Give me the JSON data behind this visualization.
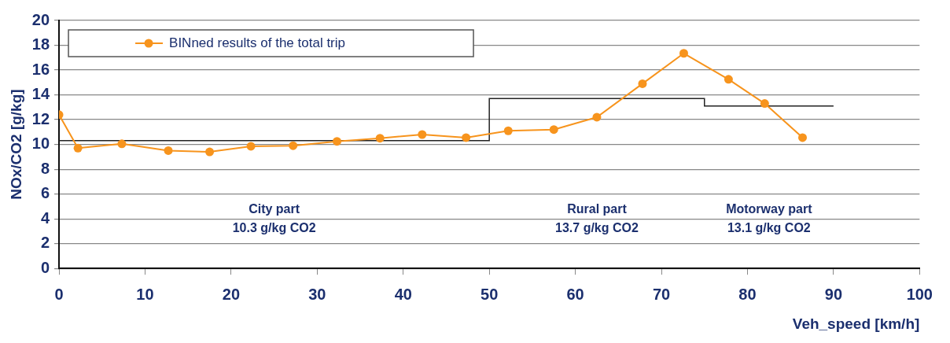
{
  "chart_data": {
    "type": "line",
    "xlabel": "Veh_speed [km/h]",
    "ylabel": "NOx/CO2 [g/kg]",
    "xlim": [
      0,
      100
    ],
    "xticks": [
      0,
      10,
      20,
      30,
      40,
      50,
      60,
      70,
      80,
      90,
      100
    ],
    "ylim": [
      0,
      20
    ],
    "yticks": [
      0,
      2,
      4,
      6,
      8,
      10,
      12,
      14,
      16,
      18,
      20
    ],
    "grid": "y",
    "legend": "top left",
    "marker": "circle",
    "line_style": "solid",
    "series": [
      {
        "name": "BINned results of the total trip",
        "color": "#f7941d",
        "x": [
          0,
          2.2,
          7.3,
          12.7,
          17.5,
          22.3,
          27.2,
          32.3,
          37.3,
          42.2,
          47.3,
          52.2,
          57.5,
          62.5,
          67.8,
          72.6,
          77.8,
          82,
          86.4
        ],
        "values": [
          12.4,
          9.7,
          10.05,
          9.5,
          9.4,
          9.85,
          9.9,
          10.25,
          10.5,
          10.8,
          10.55,
          11.1,
          11.2,
          12.2,
          14.9,
          17.35,
          15.25,
          13.3,
          10.55
        ]
      },
      {
        "type": "step",
        "x": [
          0,
          50,
          75,
          90
        ],
        "values": [
          10.3,
          13.7,
          13.1,
          13.1
        ],
        "color": "#222222",
        "marker": "none"
      }
    ],
    "annotations": [
      "City part\n10.3 g/kg CO2",
      "Rural part\n13.7 g/kg CO2",
      "Motorway part\n13.1 g/kg CO2"
    ]
  }
}
